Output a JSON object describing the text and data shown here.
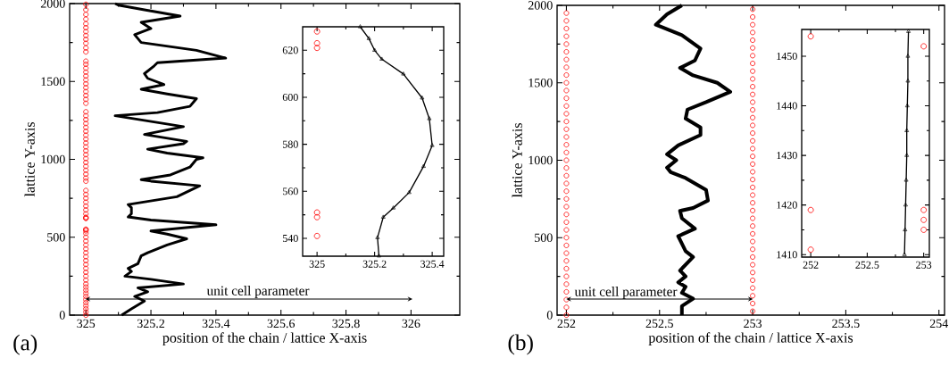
{
  "chart_data": [
    {
      "type": "scatter",
      "xlabel": "position of the chain / lattice X-axis",
      "ylabel": "lattice Y-axis",
      "xlim": [
        324.95,
        326.15
      ],
      "ylim": [
        0,
        2000
      ],
      "xticks": [
        325,
        325.2,
        325.4,
        325.6,
        325.8,
        326
      ],
      "yticks": [
        0,
        500,
        1000,
        1500,
        2000
      ],
      "annotations": [
        "(a)",
        "unit cell parameter"
      ],
      "series": [
        {
          "marker": "circle",
          "color": "#ff0000",
          "x": [
            325,
            325,
            325,
            325,
            325,
            325,
            325,
            325,
            325,
            325,
            325,
            325,
            325,
            325,
            325,
            325,
            325,
            325,
            325,
            325,
            325,
            325,
            325,
            325,
            325,
            325,
            325,
            325,
            325,
            325,
            325,
            325,
            325,
            325,
            325,
            325,
            325,
            325,
            325,
            325,
            325,
            325,
            325,
            325,
            325,
            325,
            325,
            325,
            325,
            325,
            325,
            325,
            325,
            325,
            325,
            325,
            325,
            325,
            325,
            325,
            325,
            325,
            325,
            325,
            325,
            325,
            325,
            325,
            325,
            325,
            325,
            325,
            325,
            325,
            325,
            325,
            325,
            325,
            325,
            325
          ],
          "values": [
            0,
            20,
            40,
            60,
            80,
            100,
            120,
            140,
            160,
            180,
            200,
            225,
            250,
            275,
            300,
            325,
            350,
            375,
            400,
            425,
            450,
            475,
            500,
            525,
            541,
            549,
            551,
            621,
            623,
            628,
            650,
            675,
            700,
            725,
            750,
            775,
            800,
            860,
            880,
            905,
            930,
            955,
            980,
            1005,
            1030,
            1055,
            1080,
            1105,
            1130,
            1155,
            1180,
            1205,
            1230,
            1255,
            1280,
            1305,
            1360,
            1385,
            1410,
            1435,
            1460,
            1485,
            1510,
            1535,
            1560,
            1585,
            1610,
            1630,
            1690,
            1715,
            1745,
            1770,
            1795,
            1820,
            1845,
            1870,
            1900,
            1930,
            1960,
            1995
          ]
        },
        {
          "type": "line",
          "marker": "none",
          "color": "#000000",
          "x": [
            325.11,
            325.14,
            325.18,
            325.15,
            325.19,
            325.16,
            325.3,
            325.2,
            325.12,
            325.14,
            325.13,
            325.16,
            325.17,
            325.19,
            325.25,
            325.31,
            325.25,
            325.2,
            325.4,
            325.2,
            325.13,
            325.14,
            325.14,
            325.13,
            325.22,
            325.28,
            325.32,
            325.35,
            325.2,
            325.17,
            325.26,
            325.32,
            325.34,
            325.36,
            325.25,
            325.19,
            325.3,
            325.31,
            325.18,
            325.3,
            325.18,
            325.09,
            325.22,
            325.32,
            325.34,
            325.25,
            325.17,
            325.24,
            325.19,
            325.18,
            325.21,
            325.22,
            325.43,
            325.34,
            325.17,
            325.15,
            325.2,
            325.17,
            325.29,
            325.18,
            325.1,
            325.09
          ],
          "values": [
            0,
            40,
            90,
            120,
            150,
            175,
            200,
            230,
            250,
            280,
            300,
            330,
            380,
            400,
            450,
            490,
            520,
            540,
            580,
            610,
            630,
            650,
            690,
            710,
            740,
            760,
            800,
            830,
            860,
            870,
            900,
            950,
            1000,
            1010,
            1040,
            1065,
            1100,
            1115,
            1160,
            1210,
            1250,
            1280,
            1300,
            1340,
            1390,
            1420,
            1450,
            1480,
            1520,
            1550,
            1600,
            1620,
            1650,
            1700,
            1750,
            1800,
            1840,
            1880,
            1920,
            1960,
            1990,
            2000
          ]
        }
      ]
    },
    {
      "type": "scatter",
      "xlim": [
        324.95,
        325.44
      ],
      "ylim": [
        532.4,
        630
      ],
      "xticks": [
        325,
        325.2,
        325.4
      ],
      "yticks": [
        540,
        560,
        580,
        600,
        620
      ],
      "series": [
        {
          "marker": "circle",
          "color": "#ff0000",
          "x": [
            325,
            325,
            325,
            325,
            325,
            325
          ],
          "values": [
            628,
            623,
            621,
            551,
            549,
            541
          ]
        },
        {
          "type": "line",
          "marker": "triangle",
          "color": "#000000",
          "x": [
            325.215,
            325.21,
            325.23,
            325.265,
            325.32,
            325.37,
            325.4,
            325.39,
            325.365,
            325.3,
            325.225,
            325.2,
            325.18,
            325.15
          ],
          "values": [
            532.5,
            540.3,
            549,
            552.9,
            559.5,
            570.6,
            579.5,
            590.9,
            599.7,
            609.9,
            616.2,
            620,
            625,
            630
          ]
        }
      ]
    },
    {
      "type": "scatter",
      "xlabel": "position of the chain / lattice X-axis",
      "ylabel": "lattice Y-axis",
      "xlim": [
        251.95,
        254.03
      ],
      "ylim": [
        0,
        2000
      ],
      "xticks": [
        252,
        252.5,
        253,
        253.5,
        254
      ],
      "yticks": [
        0,
        500,
        1000,
        1500,
        2000
      ],
      "annotations": [
        "(b)",
        "unit cell parameter"
      ],
      "series": [
        {
          "marker": "circle",
          "color": "#ff0000",
          "x": [
            252,
            252,
            252,
            252,
            252,
            252,
            252,
            252,
            252,
            252,
            252,
            252,
            252,
            252,
            252,
            252,
            252,
            252,
            252,
            252,
            252,
            252,
            252,
            252,
            252,
            252,
            252,
            252,
            252,
            252,
            252,
            252,
            252,
            252,
            252,
            252,
            252,
            252,
            252,
            252,
            253,
            253,
            253,
            253,
            253,
            253,
            253,
            253,
            253,
            253,
            253,
            253,
            253,
            253,
            253,
            253,
            253,
            253,
            253,
            253,
            253,
            253,
            253,
            253,
            253,
            253,
            253,
            253,
            253,
            253,
            253,
            253,
            253,
            253,
            253,
            253,
            253,
            253,
            253,
            253
          ],
          "values": [
            0,
            50,
            100,
            150,
            200,
            250,
            300,
            350,
            400,
            450,
            500,
            550,
            600,
            650,
            700,
            750,
            800,
            850,
            900,
            950,
            1000,
            1050,
            1100,
            1150,
            1200,
            1250,
            1300,
            1350,
            1400,
            1450,
            1500,
            1550,
            1600,
            1650,
            1700,
            1750,
            1800,
            1850,
            1900,
            1950,
            25,
            75,
            125,
            175,
            225,
            275,
            325,
            375,
            425,
            475,
            525,
            575,
            625,
            675,
            725,
            775,
            825,
            875,
            925,
            975,
            1025,
            1075,
            1125,
            1175,
            1225,
            1275,
            1325,
            1375,
            1425,
            1475,
            1525,
            1575,
            1625,
            1675,
            1725,
            1775,
            1825,
            1875,
            1925,
            1975
          ]
        },
        {
          "type": "line",
          "marker": "none",
          "color": "#000000",
          "x": [
            252.62,
            252.62,
            252.68,
            252.62,
            252.64,
            252.6,
            252.64,
            252.61,
            252.68,
            252.64,
            252.6,
            252.69,
            252.62,
            252.61,
            252.68,
            252.76,
            252.75,
            252.64,
            252.56,
            252.54,
            252.59,
            252.54,
            252.6,
            252.72,
            252.72,
            252.64,
            252.65,
            252.75,
            252.88,
            252.81,
            252.68,
            252.61,
            252.69,
            252.72,
            252.62,
            252.48,
            252.54,
            252.62
          ],
          "values": [
            0,
            58,
            106,
            144,
            183,
            212,
            250,
            288,
            375,
            413,
            510,
            558,
            625,
            673,
            692,
            740,
            808,
            885,
            923,
            952,
            1000,
            1038,
            1096,
            1163,
            1212,
            1269,
            1327,
            1375,
            1442,
            1500,
            1548,
            1596,
            1644,
            1721,
            1808,
            1875,
            1942,
            2000
          ]
        }
      ]
    },
    {
      "type": "scatter",
      "xlim": [
        251.92,
        253.05
      ],
      "ylim": [
        1409.5,
        1455.4
      ],
      "xticks": [
        252,
        252.5,
        253
      ],
      "yticks": [
        1410,
        1420,
        1430,
        1440,
        1450
      ],
      "series": [
        {
          "marker": "circle",
          "color": "#ff0000",
          "x": [
            252,
            252,
            252,
            253,
            253,
            253,
            253
          ],
          "values": [
            1454,
            1419,
            1411,
            1452,
            1419,
            1417,
            1415
          ]
        },
        {
          "type": "line",
          "marker": "triangle",
          "color": "#000000",
          "x": [
            252.83,
            252.835,
            252.84,
            252.845,
            252.85,
            252.85,
            252.855,
            252.86,
            252.86,
            252.865
          ],
          "values": [
            1410,
            1415,
            1420,
            1425,
            1430,
            1435,
            1440,
            1445,
            1450,
            1455
          ]
        }
      ]
    }
  ]
}
